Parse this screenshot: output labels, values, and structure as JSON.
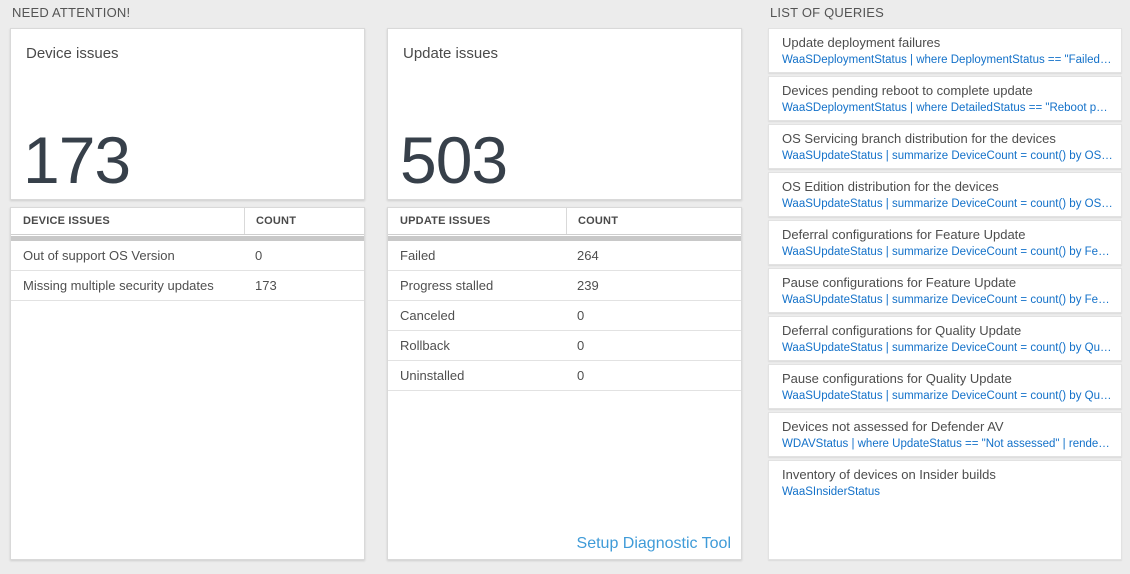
{
  "sections": {
    "need_attention": "NEED ATTENTION!",
    "list_of_queries": "LIST OF QUERIES"
  },
  "device_card": {
    "title": "Device issues",
    "value": "173",
    "columns": [
      "DEVICE ISSUES",
      "COUNT"
    ],
    "rows": [
      {
        "label": "Out of support OS Version",
        "count": "0"
      },
      {
        "label": "Missing multiple security updates",
        "count": "173"
      }
    ]
  },
  "update_card": {
    "title": "Update issues",
    "value": "503",
    "columns": [
      "UPDATE ISSUES",
      "COUNT"
    ],
    "rows": [
      {
        "label": "Failed",
        "count": "264"
      },
      {
        "label": "Progress stalled",
        "count": "239"
      },
      {
        "label": "Canceled",
        "count": "0"
      },
      {
        "label": "Rollback",
        "count": "0"
      },
      {
        "label": "Uninstalled",
        "count": "0"
      }
    ],
    "footer_link": "Setup Diagnostic Tool"
  },
  "queries": {
    "items": [
      {
        "title": "Update deployment failures",
        "query": "WaaSDeploymentStatus | where DeploymentStatus == \"Failed\" |..."
      },
      {
        "title": "Devices pending reboot to complete update",
        "query": "WaaSDeploymentStatus | where DetailedStatus == \"Reboot pend..."
      },
      {
        "title": "OS Servicing branch distribution for the devices",
        "query": "WaaSUpdateStatus | summarize DeviceCount = count() by OSSer..."
      },
      {
        "title": "OS Edition distribution for the devices",
        "query": "WaaSUpdateStatus | summarize DeviceCount = count() by OSEdit..."
      },
      {
        "title": "Deferral configurations for Feature Update",
        "query": "WaaSUpdateStatus | summarize DeviceCount = count() by Featur..."
      },
      {
        "title": "Pause configurations for Feature Update",
        "query": "WaaSUpdateStatus | summarize DeviceCount = count() by Featur..."
      },
      {
        "title": "Deferral configurations for Quality Update",
        "query": "WaaSUpdateStatus | summarize DeviceCount = count() by Qualit..."
      },
      {
        "title": "Pause configurations for Quality Update",
        "query": "WaaSUpdateStatus | summarize DeviceCount = count() by Qualit..."
      },
      {
        "title": "Devices not assessed for Defender AV",
        "query": "WDAVStatus | where UpdateStatus == \"Not assessed\" | render ta..."
      },
      {
        "title": "Inventory of devices on Insider builds",
        "query": "WaaSInsiderStatus"
      }
    ]
  },
  "colors": {
    "page_bg": "#ececec",
    "card_border": "#d9d9d9",
    "big_number": "#37404a",
    "query_link_blue": "#1371c9",
    "setup_link_blue": "#3f9bd8",
    "table_scrollbar_gray": "#c8c8c8"
  }
}
